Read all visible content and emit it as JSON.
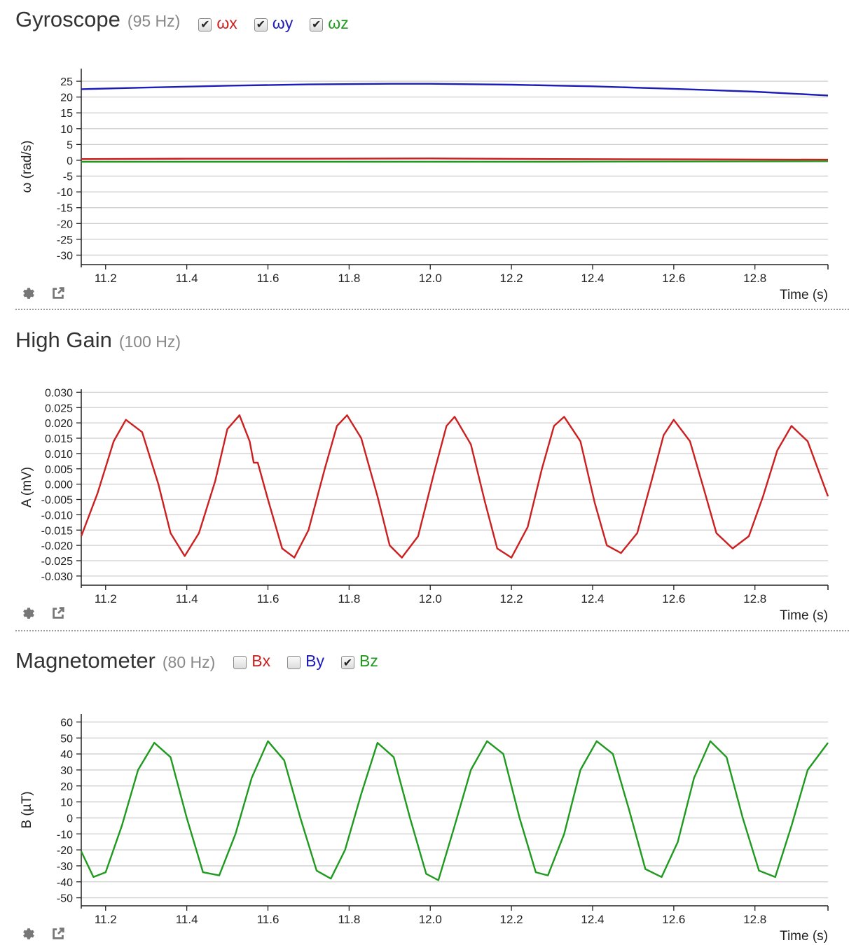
{
  "panels": [
    {
      "title": "Gyroscope",
      "rate": "(95 Hz)",
      "legend": [
        {
          "label": "ωx",
          "checked": true,
          "color": "#cc1f1f"
        },
        {
          "label": "ωy",
          "checked": true,
          "color": "#1c1cb8"
        },
        {
          "label": "ωz",
          "checked": true,
          "color": "#1f9a1f"
        }
      ]
    },
    {
      "title": "High Gain",
      "rate": "(100 Hz)",
      "legend": []
    },
    {
      "title": "Magnetometer",
      "rate": "(80 Hz)",
      "legend": [
        {
          "label": "Bx",
          "checked": false,
          "color": "#cc1f1f"
        },
        {
          "label": "By",
          "checked": false,
          "color": "#1c1cb8"
        },
        {
          "label": "Bz",
          "checked": true,
          "color": "#1f9a1f"
        }
      ]
    }
  ],
  "icons": {
    "settings": "gear-icon",
    "popout": "external-link-icon"
  },
  "chart_data": [
    {
      "type": "line",
      "xlabel": "Time (s)",
      "ylabel": "ω (rad/s)",
      "xlim": [
        11.14,
        12.98
      ],
      "ylim": [
        -33,
        29
      ],
      "xticks": [
        11.2,
        11.4,
        11.6,
        11.8,
        12.0,
        12.2,
        12.4,
        12.6,
        12.8
      ],
      "xtick_labels": [
        "11.2",
        "11.4",
        "11.6",
        "11.8",
        "12.0",
        "12.2",
        "12.4",
        "12.6",
        "12.8"
      ],
      "yticks": [
        25,
        20,
        15,
        10,
        5,
        0,
        -5,
        -10,
        -15,
        -20,
        -25,
        -30
      ],
      "ytick_labels": [
        "25",
        "20",
        "15",
        "10",
        "5",
        "0",
        "-5",
        "-10",
        "-15",
        "-20",
        "-25",
        "-30"
      ],
      "grid": true,
      "series": [
        {
          "name": "ωy",
          "color": "#1c1cb8",
          "x": [
            11.14,
            11.3,
            11.5,
            11.7,
            11.9,
            12.0,
            12.2,
            12.4,
            12.6,
            12.8,
            12.98
          ],
          "y": [
            22.5,
            23.0,
            23.6,
            24.0,
            24.2,
            24.2,
            23.9,
            23.4,
            22.6,
            21.7,
            20.5
          ]
        },
        {
          "name": "ωx",
          "color": "#cc1f1f",
          "x": [
            11.14,
            11.4,
            11.7,
            12.0,
            12.3,
            12.6,
            12.98
          ],
          "y": [
            0.4,
            0.5,
            0.5,
            0.6,
            0.4,
            0.3,
            0.2
          ]
        },
        {
          "name": "ωz",
          "color": "#1f9a1f",
          "x": [
            11.14,
            11.4,
            11.7,
            12.0,
            12.3,
            12.6,
            12.98
          ],
          "y": [
            -0.5,
            -0.5,
            -0.5,
            -0.5,
            -0.5,
            -0.4,
            -0.3
          ]
        }
      ]
    },
    {
      "type": "line",
      "xlabel": "Time (s)",
      "ylabel": "A (mV)",
      "xlim": [
        11.14,
        12.98
      ],
      "ylim": [
        -0.033,
        0.031
      ],
      "xticks": [
        11.2,
        11.4,
        11.6,
        11.8,
        12.0,
        12.2,
        12.4,
        12.6,
        12.8
      ],
      "xtick_labels": [
        "11.2",
        "11.4",
        "11.6",
        "11.8",
        "12.0",
        "12.2",
        "12.4",
        "12.6",
        "12.8"
      ],
      "yticks": [
        0.03,
        0.025,
        0.02,
        0.015,
        0.01,
        0.005,
        0.0,
        -0.005,
        -0.01,
        -0.015,
        -0.02,
        -0.025,
        -0.03
      ],
      "ytick_labels": [
        "0.030",
        "0.025",
        "0.020",
        "0.015",
        "0.010",
        "0.005",
        "0.000",
        "-0.005",
        "-0.010",
        "-0.015",
        "-0.020",
        "-0.025",
        "-0.030"
      ],
      "grid": true,
      "series": [
        {
          "name": "",
          "color": "#cc1f1f",
          "x": [
            11.14,
            11.18,
            11.22,
            11.25,
            11.29,
            11.33,
            11.36,
            11.395,
            11.43,
            11.47,
            11.5,
            11.53,
            11.555,
            11.565,
            11.575,
            11.6,
            11.635,
            11.665,
            11.7,
            11.74,
            11.77,
            11.795,
            11.83,
            11.87,
            11.9,
            11.93,
            11.97,
            12.01,
            12.04,
            12.06,
            12.1,
            12.135,
            12.165,
            12.2,
            12.24,
            12.275,
            12.305,
            12.33,
            12.37,
            12.405,
            12.435,
            12.47,
            12.51,
            12.545,
            12.575,
            12.6,
            12.64,
            12.675,
            12.705,
            12.745,
            12.785,
            12.82,
            12.855,
            12.89,
            12.93,
            12.98
          ],
          "y": [
            -0.017,
            -0.003,
            0.014,
            0.021,
            0.017,
            0.0,
            -0.016,
            -0.0235,
            -0.016,
            0.001,
            0.018,
            0.0225,
            0.014,
            0.007,
            0.007,
            -0.005,
            -0.021,
            -0.024,
            -0.015,
            0.005,
            0.019,
            0.0225,
            0.015,
            -0.004,
            -0.02,
            -0.024,
            -0.017,
            0.004,
            0.019,
            0.022,
            0.013,
            -0.006,
            -0.021,
            -0.024,
            -0.014,
            0.005,
            0.019,
            0.022,
            0.014,
            -0.006,
            -0.02,
            -0.0225,
            -0.016,
            0.001,
            0.016,
            0.021,
            0.014,
            -0.002,
            -0.016,
            -0.021,
            -0.017,
            -0.004,
            0.011,
            0.019,
            0.014,
            -0.004
          ]
        }
      ]
    },
    {
      "type": "line",
      "xlabel": "Time (s)",
      "ylabel": "B (µT)",
      "xlim": [
        11.14,
        12.98
      ],
      "ylim": [
        -55,
        65
      ],
      "xticks": [
        11.2,
        11.4,
        11.6,
        11.8,
        12.0,
        12.2,
        12.4,
        12.6,
        12.8
      ],
      "xtick_labels": [
        "11.2",
        "11.4",
        "11.6",
        "11.8",
        "12.0",
        "12.2",
        "12.4",
        "12.6",
        "12.8"
      ],
      "yticks": [
        60,
        50,
        40,
        30,
        20,
        10,
        0,
        -10,
        -20,
        -30,
        -40,
        -50
      ],
      "ytick_labels": [
        "60",
        "50",
        "40",
        "30",
        "20",
        "10",
        "0",
        "-10",
        "-20",
        "-30",
        "-40",
        "-50"
      ],
      "grid": true,
      "series": [
        {
          "name": "Bz",
          "color": "#1f9a1f",
          "x": [
            11.14,
            11.17,
            11.2,
            11.24,
            11.28,
            11.32,
            11.36,
            11.4,
            11.44,
            11.48,
            11.52,
            11.56,
            11.6,
            11.64,
            11.68,
            11.72,
            11.755,
            11.79,
            11.83,
            11.87,
            11.91,
            11.95,
            11.99,
            12.02,
            12.06,
            12.1,
            12.14,
            12.18,
            12.22,
            12.26,
            12.29,
            12.33,
            12.37,
            12.41,
            12.45,
            12.49,
            12.53,
            12.57,
            12.61,
            12.65,
            12.69,
            12.73,
            12.77,
            12.81,
            12.85,
            12.89,
            12.93,
            12.98
          ],
          "y": [
            -21,
            -37,
            -34,
            -5,
            30,
            47,
            38,
            0,
            -34,
            -36,
            -10,
            25,
            48,
            36,
            0,
            -33,
            -38,
            -20,
            15,
            47,
            38,
            0,
            -35,
            -39,
            -5,
            30,
            48,
            40,
            0,
            -34,
            -36,
            -10,
            30,
            48,
            40,
            5,
            -32,
            -37,
            -15,
            25,
            48,
            38,
            0,
            -33,
            -37,
            -5,
            30,
            47
          ]
        }
      ]
    }
  ]
}
